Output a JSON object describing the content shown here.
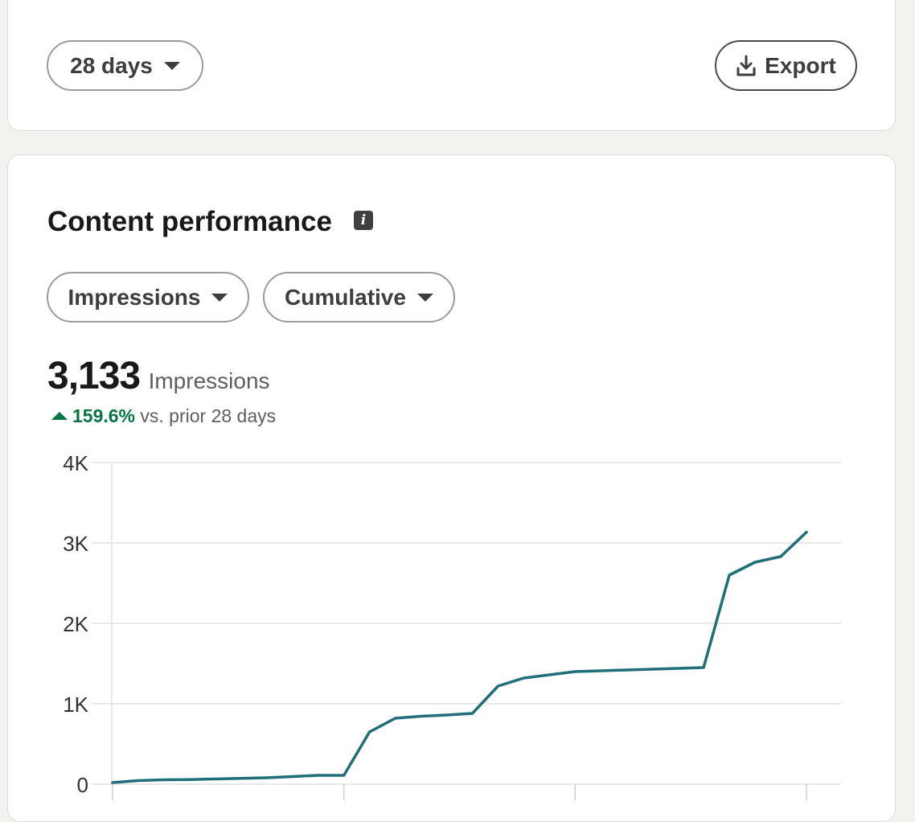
{
  "filters": {
    "range_label": "28 days",
    "export_label": "Export"
  },
  "section": {
    "title": "Content performance",
    "info_icon": "info-icon"
  },
  "selectors": {
    "metric": "Impressions",
    "mode": "Cumulative"
  },
  "summary": {
    "total": "3,133",
    "total_label": "Impressions",
    "change": "159.6%",
    "change_suffix": "vs. prior 28 days",
    "change_direction": "up",
    "change_color": "#057642"
  },
  "colors": {
    "line": "#1f6e7a",
    "grid": "#e2e2e2",
    "axis_text": "#333333"
  },
  "chart_data": {
    "type": "line",
    "y_ticks": [
      0,
      1000,
      2000,
      3000,
      4000
    ],
    "y_tick_labels": [
      "0",
      "1K",
      "2K",
      "3K",
      "4K"
    ],
    "ylim": [
      0,
      4000
    ],
    "x_index_range": [
      1,
      28
    ],
    "grid": true,
    "series": [
      {
        "values": [
          20,
          45,
          55,
          58,
          65,
          72,
          80,
          95,
          110,
          110,
          650,
          820,
          845,
          860,
          880,
          1220,
          1320,
          1360,
          1400,
          1410,
          1420,
          1430,
          1440,
          1450,
          2600,
          2760,
          2830,
          3133
        ]
      }
    ]
  }
}
